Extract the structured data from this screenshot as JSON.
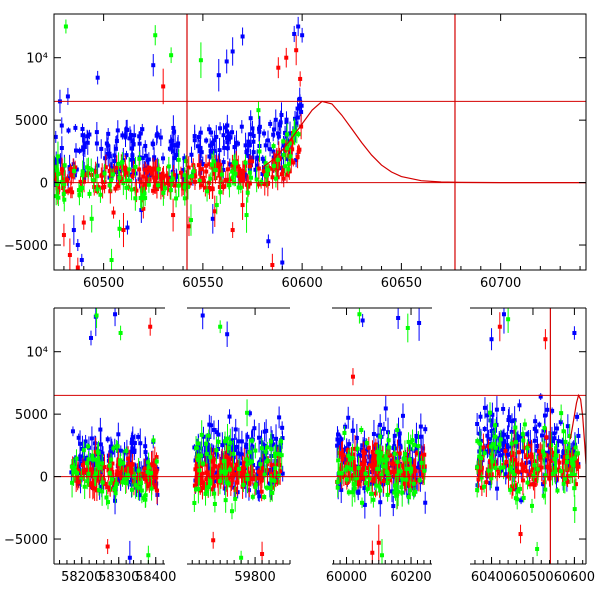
{
  "colors": {
    "blue": "#0000ff",
    "red": "#ff0000",
    "green": "#00ff00",
    "model": "#d40000",
    "axis": "#000000"
  },
  "chart_data": [
    {
      "type": "scatter",
      "panel": "top",
      "title": "",
      "xlabel": "",
      "ylabel": "",
      "xlim": [
        60475,
        60743
      ],
      "ylim": [
        -7000,
        13500
      ],
      "x_ticks": [
        60500,
        60550,
        60600,
        60650,
        60700
      ],
      "x_tick_labels": [
        "60500",
        "60550",
        "60600",
        "60650",
        "60700"
      ],
      "y_ticks": [
        -5000,
        0,
        5000,
        10000
      ],
      "y_tick_labels": [
        "−5000",
        "0",
        "5000",
        "10⁴"
      ],
      "grid": false,
      "legend": "none",
      "hlines": [
        0,
        6500
      ],
      "vlines": [
        60542,
        60677
      ],
      "model_curve": {
        "x": [
          60580,
          60585,
          60590,
          60595,
          60600,
          60605,
          60610,
          60615,
          60620,
          60625,
          60630,
          60635,
          60640,
          60645,
          60650,
          60660,
          60670,
          60680,
          60700,
          60743
        ],
        "y": [
          1200,
          1800,
          2600,
          3600,
          4700,
          5800,
          6500,
          6300,
          5400,
          4300,
          3200,
          2200,
          1400,
          850,
          480,
          150,
          50,
          15,
          0,
          0
        ]
      },
      "series": [
        {
          "color": "blue",
          "band": {
            "x": [
              60475,
              60500,
              60525,
              60550,
              60575,
              60590,
              60600
            ],
            "lo": [
              200,
              300,
              200,
              400,
              500,
              800,
              2000
            ],
            "hi": [
              4800,
              4500,
              4300,
              4600,
              5200,
              5600,
              7500
            ]
          },
          "n": 260,
          "outliers": [
            [
              60478,
              6500
            ],
            [
              60482,
              6900
            ],
            [
              60485,
              -3800
            ],
            [
              60487,
              -5000
            ],
            [
              60489,
              -6200
            ],
            [
              60497,
              8400
            ],
            [
              60512,
              -3600
            ],
            [
              60519,
              -2200
            ],
            [
              60525,
              9400
            ],
            [
              60555,
              -2900
            ],
            [
              60558,
              8600
            ],
            [
              60562,
              9700
            ],
            [
              60565,
              10500
            ],
            [
              60570,
              11700
            ],
            [
              60583,
              -4700
            ],
            [
              60590,
              -6400
            ],
            [
              60596,
              11900
            ],
            [
              60598,
              12500
            ],
            [
              60600,
              11800
            ]
          ]
        },
        {
          "color": "red",
          "band": {
            "x": [
              60475,
              60500,
              60525,
              60550,
              60575,
              60590,
              60600
            ],
            "lo": [
              -900,
              -700,
              -700,
              -600,
              -400,
              0,
              1500
            ],
            "hi": [
              1200,
              1300,
              1200,
              1500,
              1900,
              2500,
              5500
            ]
          },
          "n": 240,
          "outliers": [
            [
              60480,
              -4200
            ],
            [
              60483,
              -5800
            ],
            [
              60487,
              -6800
            ],
            [
              60490,
              -3200
            ],
            [
              60505,
              -2400
            ],
            [
              60510,
              -3800
            ],
            [
              60520,
              -2100
            ],
            [
              60530,
              7700
            ],
            [
              60535,
              -2600
            ],
            [
              60543,
              -3500
            ],
            [
              60556,
              -2300
            ],
            [
              60565,
              -3800
            ],
            [
              60570,
              -1800
            ],
            [
              60585,
              -6600
            ],
            [
              60588,
              9200
            ],
            [
              60592,
              10000
            ],
            [
              60597,
              10600
            ],
            [
              60599,
              8300
            ]
          ]
        },
        {
          "color": "green",
          "band": {
            "x": [
              60475,
              60500,
              60525,
              60550,
              60575,
              60600
            ],
            "lo": [
              -1500,
              -1200,
              -1400,
              -1200,
              -1000,
              1500
            ],
            "hi": [
              1500,
              1700,
              1800,
              2000,
              2200,
              5000
            ]
          },
          "n": 120,
          "outliers": [
            [
              60477,
              2100
            ],
            [
              60481,
              12500
            ],
            [
              60494,
              -2900
            ],
            [
              60504,
              -6200
            ],
            [
              60508,
              -3700
            ],
            [
              60518,
              1900
            ],
            [
              60526,
              11800
            ],
            [
              60534,
              10200
            ],
            [
              60544,
              -3000
            ],
            [
              60549,
              9800
            ],
            [
              60557,
              -1800
            ],
            [
              60572,
              -2600
            ],
            [
              60578,
              5800
            ],
            [
              60596,
              4100
            ]
          ]
        }
      ]
    },
    {
      "type": "scatter",
      "panel": "bottom",
      "title": "",
      "xlabel": "",
      "ylabel": "",
      "broken_axis": true,
      "segments": [
        {
          "xlim": [
            58125,
            58425
          ]
        },
        {
          "xlim": [
            59605,
            59900
          ]
        },
        {
          "xlim": [
            59955,
            60265
          ]
        },
        {
          "xlim": [
            60348,
            60628
          ]
        }
      ],
      "ylim": [
        -7000,
        13500
      ],
      "x_ticks": [
        58200,
        58300,
        58400,
        59800,
        60000,
        60200,
        60400,
        60500,
        60600
      ],
      "x_tick_labels": [
        "58200",
        "58300",
        "58400",
        "59800",
        "60000",
        "60200",
        "60400",
        "60500",
        "60600"
      ],
      "y_ticks": [
        -5000,
        0,
        5000,
        10000
      ],
      "y_tick_labels": [
        "−5000",
        "0",
        "5000",
        "10⁴"
      ],
      "grid": false,
      "legend": "none",
      "hlines": [
        0,
        6500
      ],
      "vlines": [
        60542
      ],
      "model_curve": {
        "x": [
          60590,
          60595,
          60600,
          60605,
          60610,
          60615,
          60620,
          60625,
          60628
        ],
        "y": [
          3000,
          3900,
          4900,
          5900,
          6500,
          6200,
          4800,
          2500,
          1000
        ]
      },
      "series": [
        {
          "color": "blue",
          "clusters": [
            {
              "x0": 58170,
              "x1": 58405,
              "lo": -2500,
              "hi": 4000,
              "n": 130
            },
            {
              "x0": 59625,
              "x1": 59880,
              "lo": -2000,
              "hi": 5000,
              "n": 160
            },
            {
              "x0": 59970,
              "x1": 60245,
              "lo": -2500,
              "hi": 5500,
              "n": 170
            },
            {
              "x0": 60365,
              "x1": 60610,
              "lo": -2000,
              "hi": 6500,
              "n": 150
            }
          ],
          "outliers": [
            [
              58225,
              11100
            ],
            [
              58238,
              12800
            ],
            [
              58290,
              13000
            ],
            [
              58330,
              -6500
            ],
            [
              59650,
              12900
            ],
            [
              59720,
              11400
            ],
            [
              60050,
              12500
            ],
            [
              60160,
              12700
            ],
            [
              60225,
              12300
            ],
            [
              60400,
              11000
            ],
            [
              60430,
              13000
            ],
            [
              60600,
              11500
            ]
          ]
        },
        {
          "color": "red",
          "clusters": [
            {
              "x0": 58170,
              "x1": 58405,
              "lo": -1400,
              "hi": 1800,
              "n": 110
            },
            {
              "x0": 59625,
              "x1": 59880,
              "lo": -1400,
              "hi": 2000,
              "n": 130
            },
            {
              "x0": 59970,
              "x1": 60245,
              "lo": -1600,
              "hi": 2800,
              "n": 140
            },
            {
              "x0": 60365,
              "x1": 60610,
              "lo": -1400,
              "hi": 3000,
              "n": 130
            }
          ],
          "outliers": [
            [
              58270,
              -5600
            ],
            [
              58385,
              12000
            ],
            [
              59680,
              -5100
            ],
            [
              59820,
              -6200
            ],
            [
              60020,
              8000
            ],
            [
              60080,
              -6100
            ],
            [
              60100,
              -5300
            ],
            [
              60420,
              12000
            ],
            [
              60470,
              -4600
            ],
            [
              60530,
              11000
            ]
          ]
        },
        {
          "color": "green",
          "clusters": [
            {
              "x0": 58170,
              "x1": 58405,
              "lo": -3500,
              "hi": 3500,
              "n": 70
            },
            {
              "x0": 59625,
              "x1": 59880,
              "lo": -3500,
              "hi": 5000,
              "n": 80
            },
            {
              "x0": 59970,
              "x1": 60245,
              "lo": -4000,
              "hi": 5500,
              "n": 90
            },
            {
              "x0": 60365,
              "x1": 60610,
              "lo": -4000,
              "hi": 6000,
              "n": 80
            }
          ],
          "outliers": [
            [
              58240,
              12900
            ],
            [
              58305,
              11500
            ],
            [
              58380,
              -6300
            ],
            [
              59700,
              12000
            ],
            [
              59760,
              -6500
            ],
            [
              60040,
              13000
            ],
            [
              60110,
              -6300
            ],
            [
              60190,
              11900
            ],
            [
              60440,
              12600
            ],
            [
              60510,
              -5800
            ]
          ]
        }
      ]
    }
  ]
}
